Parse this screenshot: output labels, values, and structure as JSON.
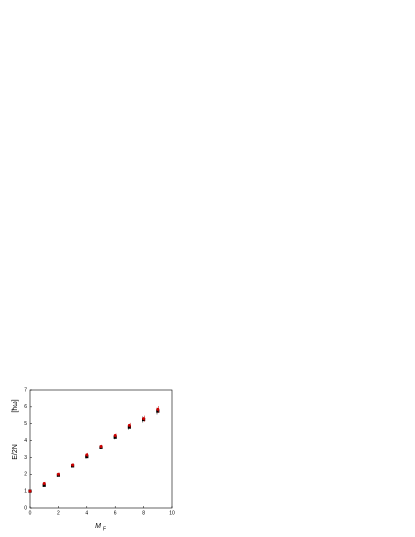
{
  "chart_data": {
    "type": "scatter",
    "x_label": "M",
    "x_label_sub": "F",
    "y_label": "E/2N",
    "y_unit": "[ħω]",
    "x": [
      0,
      1,
      2,
      3,
      4,
      5,
      6,
      7,
      8,
      9
    ],
    "series": [
      {
        "color": "#000000",
        "marker": "square",
        "values": [
          1.0,
          1.35,
          1.95,
          2.5,
          3.05,
          3.6,
          4.2,
          4.8,
          5.25,
          5.75
        ],
        "errors": [
          0.05,
          0.1,
          0.1,
          0.1,
          0.12,
          0.1,
          0.12,
          0.15,
          0.18,
          0.2
        ]
      },
      {
        "color": "#cc0000",
        "marker": "circle",
        "values": [
          1.0,
          1.45,
          2.0,
          2.55,
          3.15,
          3.65,
          4.3,
          4.9,
          5.3,
          5.85
        ],
        "errors": [
          0.05,
          0.1,
          0.1,
          0.1,
          0.12,
          0.1,
          0.12,
          0.15,
          0.18,
          0.2
        ]
      }
    ],
    "xlim": [
      0,
      10
    ],
    "xticks": [
      0,
      2,
      4,
      6,
      8,
      10
    ],
    "ylim": [
      0,
      7
    ],
    "yticks": [
      0,
      1,
      2,
      3,
      4,
      5,
      6,
      7
    ]
  }
}
